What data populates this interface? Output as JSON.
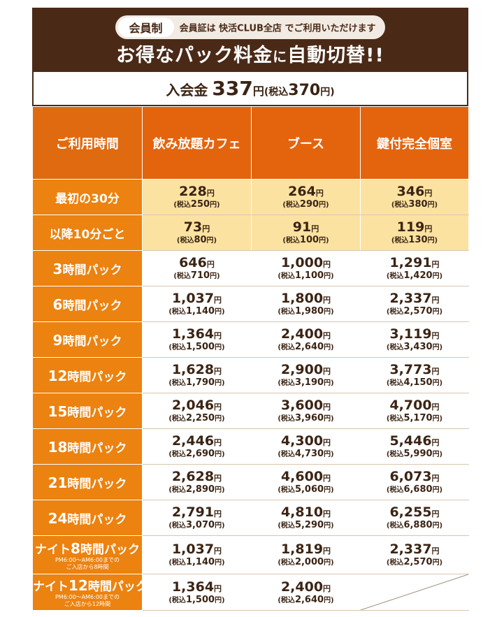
{
  "banner": {
    "badge": "会員制",
    "member_note": "会員証は 快活CLUB全店 でご利用いただけます",
    "headline_a": "お得なパック料金",
    "headline_b": "に",
    "headline_c": "自動切替!!"
  },
  "fee": {
    "label": "入会金",
    "amount": "337",
    "yen": "円",
    "tax_open": "(税込",
    "tax_amount": "370",
    "tax_close": "円)"
  },
  "table": {
    "headers": [
      "ご利用時間",
      "飲み放題カフェ",
      "ブース",
      "鍵付完全個室"
    ],
    "rows": [
      {
        "label": "最初の30分",
        "style": "light",
        "cells": [
          [
            "228",
            "250"
          ],
          [
            "264",
            "290"
          ],
          [
            "346",
            "380"
          ]
        ]
      },
      {
        "label": "以降10分ごと",
        "style": "light",
        "cells": [
          [
            "73",
            "80"
          ],
          [
            "91",
            "100"
          ],
          [
            "119",
            "130"
          ]
        ]
      },
      {
        "label_big": "3",
        "label_rest": "時間パック",
        "cells": [
          [
            "646",
            "710"
          ],
          [
            "1,000",
            "1,100"
          ],
          [
            "1,291",
            "1,420"
          ]
        ]
      },
      {
        "label_big": "6",
        "label_rest": "時間パック",
        "cells": [
          [
            "1,037",
            "1,140"
          ],
          [
            "1,800",
            "1,980"
          ],
          [
            "2,337",
            "2,570"
          ]
        ]
      },
      {
        "label_big": "9",
        "label_rest": "時間パック",
        "cells": [
          [
            "1,364",
            "1,500"
          ],
          [
            "2,400",
            "2,640"
          ],
          [
            "3,119",
            "3,430"
          ]
        ]
      },
      {
        "label_big": "12",
        "label_rest": "時間パック",
        "cells": [
          [
            "1,628",
            "1,790"
          ],
          [
            "2,900",
            "3,190"
          ],
          [
            "3,773",
            "4,150"
          ]
        ]
      },
      {
        "label_big": "15",
        "label_rest": "時間パック",
        "cells": [
          [
            "2,046",
            "2,250"
          ],
          [
            "3,600",
            "3,960"
          ],
          [
            "4,700",
            "5,170"
          ]
        ]
      },
      {
        "label_big": "18",
        "label_rest": "時間パック",
        "cells": [
          [
            "2,446",
            "2,690"
          ],
          [
            "4,300",
            "4,730"
          ],
          [
            "5,446",
            "5,990"
          ]
        ]
      },
      {
        "label_big": "21",
        "label_rest": "時間パック",
        "cells": [
          [
            "2,628",
            "2,890"
          ],
          [
            "4,600",
            "5,060"
          ],
          [
            "6,073",
            "6,680"
          ]
        ]
      },
      {
        "label_big": "24",
        "label_rest": "時間パック",
        "cells": [
          [
            "2,791",
            "3,070"
          ],
          [
            "4,810",
            "5,290"
          ],
          [
            "6,255",
            "6,880"
          ]
        ]
      },
      {
        "label_pre": "ナイト",
        "label_big": "8",
        "label_rest": "時間パック",
        "note1": "PM6:00〜AM6:00までの",
        "note2": "ご入店から8時間",
        "cells": [
          [
            "1,037",
            "1,140"
          ],
          [
            "1,819",
            "2,000"
          ],
          [
            "2,337",
            "2,570"
          ]
        ]
      },
      {
        "label_pre": "ナイト",
        "label_big": "12",
        "label_rest": "時間パック",
        "note1": "PM6:00〜AM6:00までの",
        "note2": "ご入店から12時間",
        "cells": [
          [
            "1,364",
            "1,500"
          ],
          [
            "2,400",
            "2,640"
          ],
          null
        ]
      }
    ],
    "yen": "円",
    "tax_prefix": "(税込",
    "tax_suffix": "円)"
  },
  "colors": {
    "banner_brown": "#4a2a17",
    "header_orange": "#e4640e",
    "label_orange": "#ec820f",
    "light_yellow": "#fbe2a0"
  }
}
